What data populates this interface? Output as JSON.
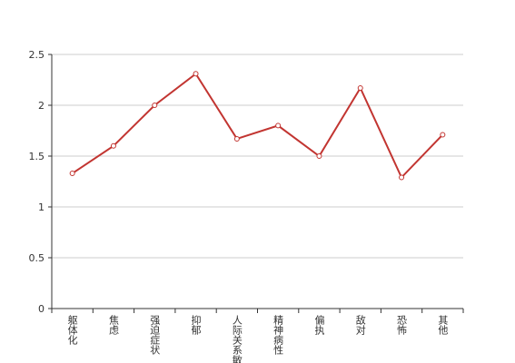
{
  "chart_data": {
    "type": "line",
    "categories": [
      "躯体化",
      "焦虑",
      "强迫症状",
      "抑郁",
      "人际关系敏感",
      "精神病性",
      "偏执",
      "敌对",
      "恐怖",
      "其他"
    ],
    "values": [
      1.33,
      1.6,
      2.0,
      2.31,
      1.67,
      1.8,
      1.5,
      2.17,
      1.29,
      1.71
    ],
    "color": "#c23531",
    "ylim": [
      0,
      2.5
    ],
    "yticks": [
      0,
      0.5,
      1,
      1.5,
      2,
      2.5
    ],
    "grid": true
  }
}
